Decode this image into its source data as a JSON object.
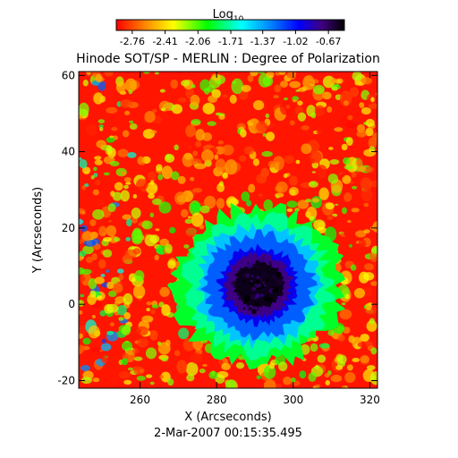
{
  "chart_data": {
    "type": "heatmap",
    "title": "Hinode SOT/SP - MERLIN : Degree of Polarization",
    "xlabel": "X (Arcseconds)",
    "ylabel": "Y (Arcseconds)",
    "footer": "2-Mar-2007 00:15:35.495",
    "xlim": [
      244,
      322
    ],
    "ylim": [
      -22,
      61
    ],
    "x_ticks": [
      260,
      280,
      300,
      320
    ],
    "y_ticks": [
      -20,
      0,
      20,
      40,
      60
    ],
    "colorbar": {
      "label_base": "Log",
      "label_sub": "10",
      "range": [
        -2.93,
        -0.5
      ],
      "ticks": [
        "-2.76",
        "-2.41",
        "-2.06",
        "-1.71",
        "-1.37",
        "-1.02",
        "-0.67"
      ],
      "colormap": [
        "#ff0000",
        "#ff8000",
        "#ffff00",
        "#00ff00",
        "#00ffff",
        "#0080ff",
        "#0000ff",
        "#400080",
        "#000000"
      ]
    },
    "features": {
      "sunspot_center": [
        291,
        5
      ],
      "umbra_radius_arcsec": 9,
      "penumbra_radius_arcsec": 14
    },
    "background_level": -2.6,
    "umbra_level": -0.55
  }
}
